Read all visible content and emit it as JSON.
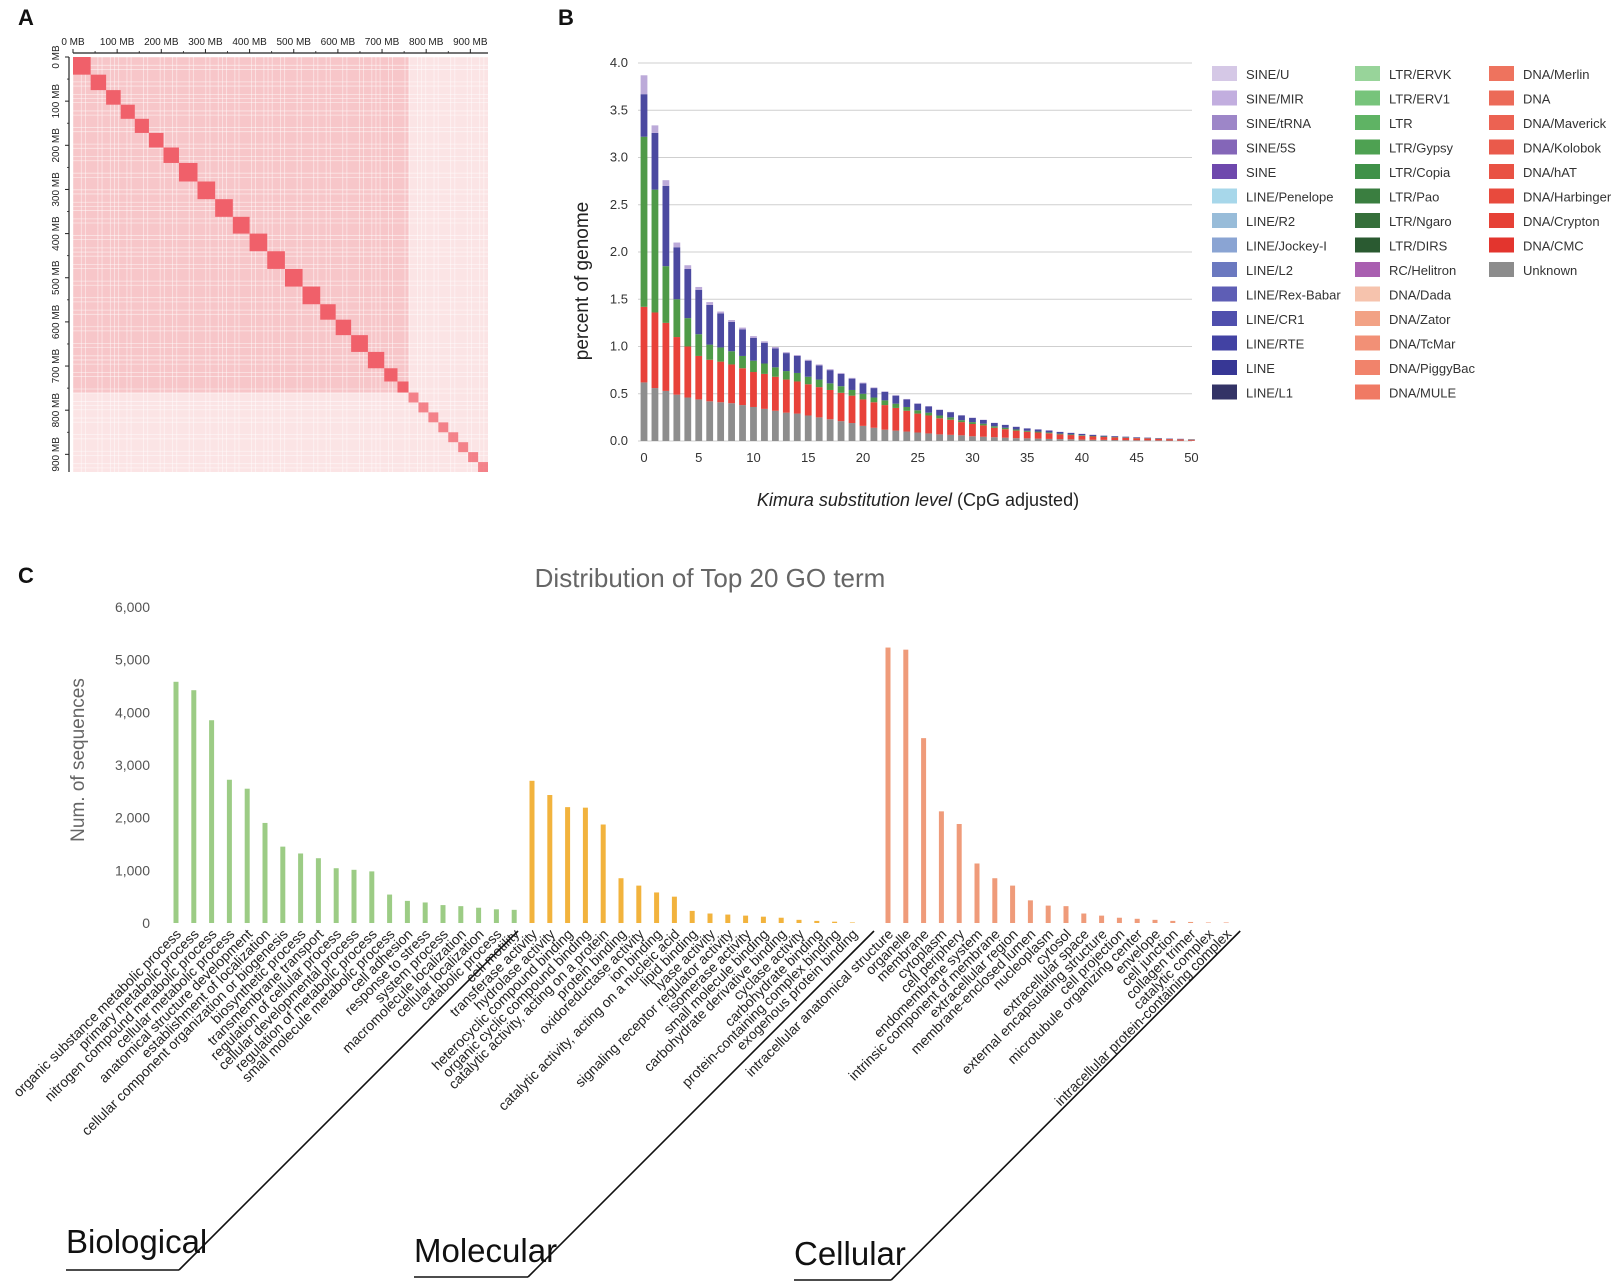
{
  "panels": {
    "A": "A",
    "B": "B",
    "C": "C"
  },
  "chart_data": [
    {
      "id": "A",
      "type": "heatmap",
      "title": "",
      "top_ticks": [
        "0 MB",
        "100 MB",
        "200 MB",
        "300 MB",
        "400 MB",
        "500 MB",
        "600 MB",
        "700 MB",
        "800 MB",
        "900 MB"
      ],
      "left_ticks": [
        "0 MB",
        "100 MB",
        "200 MB",
        "300 MB",
        "400 MB",
        "500 MB",
        "600 MB",
        "700 MB",
        "800 MB",
        "900 MB"
      ],
      "axis_range_mb": [
        0,
        940
      ],
      "diagonal_block_boundaries_mb": [
        0,
        40,
        75,
        108,
        140,
        172,
        205,
        240,
        282,
        322,
        362,
        400,
        440,
        480,
        520,
        560,
        595,
        630,
        668,
        705,
        735,
        760
      ],
      "colors": {
        "strong": "#f0606a",
        "base": "#f7c6c9",
        "weak": "#fbe4e5"
      }
    },
    {
      "id": "B",
      "type": "bar",
      "stacked": true,
      "xlabel_italic": "Kimura substitution level",
      "xlabel_rest": "(CpG adjusted)",
      "ylabel": "percent of genome",
      "ylim": [
        0,
        4.0
      ],
      "yticks": [
        "0.0",
        "0.5",
        "1.0",
        "1.5",
        "2.0",
        "2.5",
        "3.0",
        "3.5",
        "4.0"
      ],
      "xticks": [
        0,
        5,
        10,
        15,
        20,
        25,
        30,
        35,
        40,
        45,
        50
      ],
      "x": [
        0,
        1,
        2,
        3,
        4,
        5,
        6,
        7,
        8,
        9,
        10,
        11,
        12,
        13,
        14,
        15,
        16,
        17,
        18,
        19,
        20,
        21,
        22,
        23,
        24,
        25,
        26,
        27,
        28,
        29,
        30,
        31,
        32,
        33,
        34,
        35,
        36,
        37,
        38,
        39,
        40,
        41,
        42,
        43,
        44,
        45,
        46,
        47,
        48,
        49,
        50
      ],
      "series": [
        {
          "name": "Unknown",
          "color": "#8e8e8e",
          "values": [
            0.62,
            0.56,
            0.53,
            0.49,
            0.46,
            0.44,
            0.42,
            0.41,
            0.4,
            0.38,
            0.36,
            0.34,
            0.32,
            0.3,
            0.29,
            0.27,
            0.25,
            0.23,
            0.21,
            0.19,
            0.16,
            0.14,
            0.12,
            0.11,
            0.1,
            0.09,
            0.08,
            0.07,
            0.065,
            0.06,
            0.05,
            0.045,
            0.04,
            0.035,
            0.03,
            0.028,
            0.025,
            0.022,
            0.02,
            0.018,
            0.015,
            0.013,
            0.012,
            0.01,
            0.009,
            0.008,
            0.007,
            0.006,
            0.005,
            0.004,
            0.004
          ]
        },
        {
          "name": "DNA",
          "color": "#e8423a",
          "values": [
            0.8,
            0.8,
            0.72,
            0.61,
            0.54,
            0.46,
            0.44,
            0.43,
            0.41,
            0.39,
            0.37,
            0.37,
            0.36,
            0.35,
            0.34,
            0.33,
            0.32,
            0.31,
            0.3,
            0.29,
            0.28,
            0.27,
            0.26,
            0.24,
            0.22,
            0.2,
            0.19,
            0.17,
            0.16,
            0.14,
            0.13,
            0.12,
            0.1,
            0.09,
            0.08,
            0.07,
            0.065,
            0.06,
            0.05,
            0.045,
            0.04,
            0.035,
            0.03,
            0.028,
            0.025,
            0.022,
            0.02,
            0.018,
            0.015,
            0.013,
            0.01
          ]
        },
        {
          "name": "LTR",
          "color": "#4f9a48",
          "values": [
            1.8,
            1.3,
            0.6,
            0.4,
            0.3,
            0.23,
            0.16,
            0.15,
            0.14,
            0.13,
            0.12,
            0.11,
            0.1,
            0.09,
            0.09,
            0.08,
            0.08,
            0.07,
            0.07,
            0.06,
            0.06,
            0.05,
            0.05,
            0.045,
            0.04,
            0.035,
            0.03,
            0.03,
            0.025,
            0.02,
            0.02,
            0.018,
            0.016,
            0.015,
            0.012,
            0.01,
            0.01,
            0.009,
            0.008,
            0.007,
            0.006,
            0.005,
            0.005,
            0.004,
            0.004,
            0.003,
            0.003,
            0.002,
            0.002,
            0.002,
            0.002
          ]
        },
        {
          "name": "LINE",
          "color": "#4b49a0",
          "values": [
            0.45,
            0.6,
            0.85,
            0.55,
            0.52,
            0.47,
            0.42,
            0.36,
            0.31,
            0.28,
            0.24,
            0.22,
            0.2,
            0.19,
            0.18,
            0.17,
            0.15,
            0.14,
            0.13,
            0.12,
            0.11,
            0.1,
            0.09,
            0.085,
            0.08,
            0.07,
            0.065,
            0.06,
            0.055,
            0.05,
            0.045,
            0.04,
            0.035,
            0.03,
            0.028,
            0.025,
            0.022,
            0.02,
            0.018,
            0.016,
            0.014,
            0.012,
            0.01,
            0.009,
            0.008,
            0.007,
            0.006,
            0.005,
            0.004,
            0.004,
            0.003
          ]
        },
        {
          "name": "SINE",
          "color": "#bcaad9",
          "values": [
            0.2,
            0.08,
            0.06,
            0.05,
            0.04,
            0.03,
            0.03,
            0.02,
            0.02,
            0.02,
            0.02,
            0.015,
            0.015,
            0.01,
            0.01,
            0.01,
            0.01,
            0.01,
            0.01,
            0.008,
            0.008,
            0.007,
            0.006,
            0.005,
            0.005,
            0.004,
            0.004,
            0.003,
            0.003,
            0.003,
            0.002,
            0.002,
            0.002,
            0.002,
            0.002,
            0.001,
            0.001,
            0.001,
            0.001,
            0.001,
            0.001,
            0.001,
            0.001,
            0.001,
            0.001,
            0.001,
            0.001,
            0.001,
            0.001,
            0.001,
            0.001
          ]
        }
      ],
      "legend": [
        {
          "label": "SINE/U",
          "color": "#d5c8e6"
        },
        {
          "label": "SINE/MIR",
          "color": "#c2aedf"
        },
        {
          "label": "SINE/tRNA",
          "color": "#9d86c8"
        },
        {
          "label": "SINE/5S",
          "color": "#8466b8"
        },
        {
          "label": "SINE",
          "color": "#6e48ad"
        },
        {
          "label": "LINE/Penelope",
          "color": "#a7d7ea"
        },
        {
          "label": "LINE/R2",
          "color": "#98bcd9"
        },
        {
          "label": "LINE/Jockey-I",
          "color": "#8aa4d3"
        },
        {
          "label": "LINE/L2",
          "color": "#6b79c0"
        },
        {
          "label": "LINE/Rex-Babar",
          "color": "#5e5eb5"
        },
        {
          "label": "LINE/CR1",
          "color": "#4f4fad"
        },
        {
          "label": "LINE/RTE",
          "color": "#4242a3"
        },
        {
          "label": "LINE",
          "color": "#373795"
        },
        {
          "label": "LINE/L1",
          "color": "#333366"
        },
        {
          "label": "LTR/ERVK",
          "color": "#98d49a"
        },
        {
          "label": "LTR/ERV1",
          "color": "#77c47b"
        },
        {
          "label": "LTR",
          "color": "#5fb364"
        },
        {
          "label": "LTR/Gypsy",
          "color": "#4ea152"
        },
        {
          "label": "LTR/Copia",
          "color": "#3f9148"
        },
        {
          "label": "LTR/Pao",
          "color": "#3a7e40"
        },
        {
          "label": "LTR/Ngaro",
          "color": "#356f3a"
        },
        {
          "label": "LTR/DIRS",
          "color": "#2a5a31"
        },
        {
          "label": "RC/Helitron",
          "color": "#a95fb0"
        },
        {
          "label": "DNA/Dada",
          "color": "#f6c3ad"
        },
        {
          "label": "DNA/Zator",
          "color": "#f2a285"
        },
        {
          "label": "DNA/TcMar",
          "color": "#f29076"
        },
        {
          "label": "DNA/PiggyBac",
          "color": "#f1836b"
        },
        {
          "label": "DNA/MULE",
          "color": "#f07a64"
        },
        {
          "label": "DNA/Merlin",
          "color": "#ee735e"
        },
        {
          "label": "DNA",
          "color": "#ec6a58"
        },
        {
          "label": "DNA/Maverick",
          "color": "#ec6252"
        },
        {
          "label": "DNA/Kolobok",
          "color": "#ea5a4b"
        },
        {
          "label": "DNA/hAT",
          "color": "#e95244"
        },
        {
          "label": "DNA/Harbinger",
          "color": "#e84a3d"
        },
        {
          "label": "DNA/Crypton",
          "color": "#e64136"
        },
        {
          "label": "DNA/CMC",
          "color": "#e3352e"
        },
        {
          "label": "Unknown",
          "color": "#8c8c8c"
        }
      ]
    },
    {
      "id": "C",
      "type": "bar",
      "title": "Distribution of Top 20 GO term",
      "ylabel": "Num. of sequences",
      "ylim": [
        0,
        6000
      ],
      "yticks": [
        "0",
        "1,000",
        "2,000",
        "3,000",
        "4,000",
        "5,000",
        "6,000"
      ],
      "groups": [
        {
          "label": "Biological",
          "color": "#9ccc85",
          "start": 0,
          "count": 20
        },
        {
          "label": "Molecular",
          "color": "#f2b33d",
          "start": 20,
          "count": 20
        },
        {
          "label": "Cellular",
          "color": "#ef9b7a",
          "start": 40,
          "count": 20
        }
      ],
      "categories": [
        "organic substance metabolic process",
        "primary metabolic process",
        "nitrogen compound metabolic process",
        "cellular metabolic process",
        "anatomical structure development",
        "establishment of localization",
        "cellular component organization or biogenesis",
        "biosynthetic process",
        "transmembrane transport",
        "regulation of cellular process",
        "cellular developmental process",
        "regulation of metabolic process",
        "small molecule metabolic process",
        "cell adhesion",
        "response to stress",
        "system process",
        "macromolecule localization",
        "cellular localization",
        "catabolic process",
        "cell motility",
        "transferase activity",
        "hydrolase activity",
        "heterocyclic compound binding",
        "organic cyclic compound binding",
        "catalytic activity, acting on a protein",
        "protein binding",
        "oxidoreductase activity",
        "ion binding",
        "catalytic activity, acting on a nucleic acid",
        "lipid binding",
        "lyase activity",
        "signaling receptor regulator activity",
        "isomerase activity",
        "small molecule binding",
        "carbohydrate derivative binding",
        "cyclase activity",
        "carbohydrate binding",
        "protein-containing complex binding",
        "exogenous protein binding",
        "",
        "intracellular anatomical structure",
        "organelle",
        "membrane",
        "cytoplasm",
        "cell periphery",
        "endomembrane system",
        "intrinsic component of membrane",
        "extracellular region",
        "membrane-enclosed lumen",
        "nucleoplasm",
        "cytosol",
        "extracellular space",
        "external encapsulating structure",
        "cell projection",
        "microtubule organizing center",
        "envelope",
        "cell junction",
        "collagen trimer",
        "catalytic complex",
        "intracellular protein-containing complex"
      ],
      "values": [
        4580,
        4420,
        3850,
        2720,
        2550,
        1900,
        1450,
        1320,
        1230,
        1040,
        1010,
        980,
        540,
        420,
        390,
        340,
        320,
        290,
        260,
        250,
        2700,
        2430,
        2200,
        2190,
        1870,
        850,
        710,
        580,
        500,
        230,
        180,
        160,
        140,
        120,
        100,
        60,
        40,
        25,
        10,
        0,
        5230,
        5190,
        3510,
        2120,
        1880,
        1130,
        850,
        710,
        430,
        330,
        320,
        180,
        140,
        100,
        80,
        60,
        40,
        20,
        10,
        10
      ]
    }
  ]
}
